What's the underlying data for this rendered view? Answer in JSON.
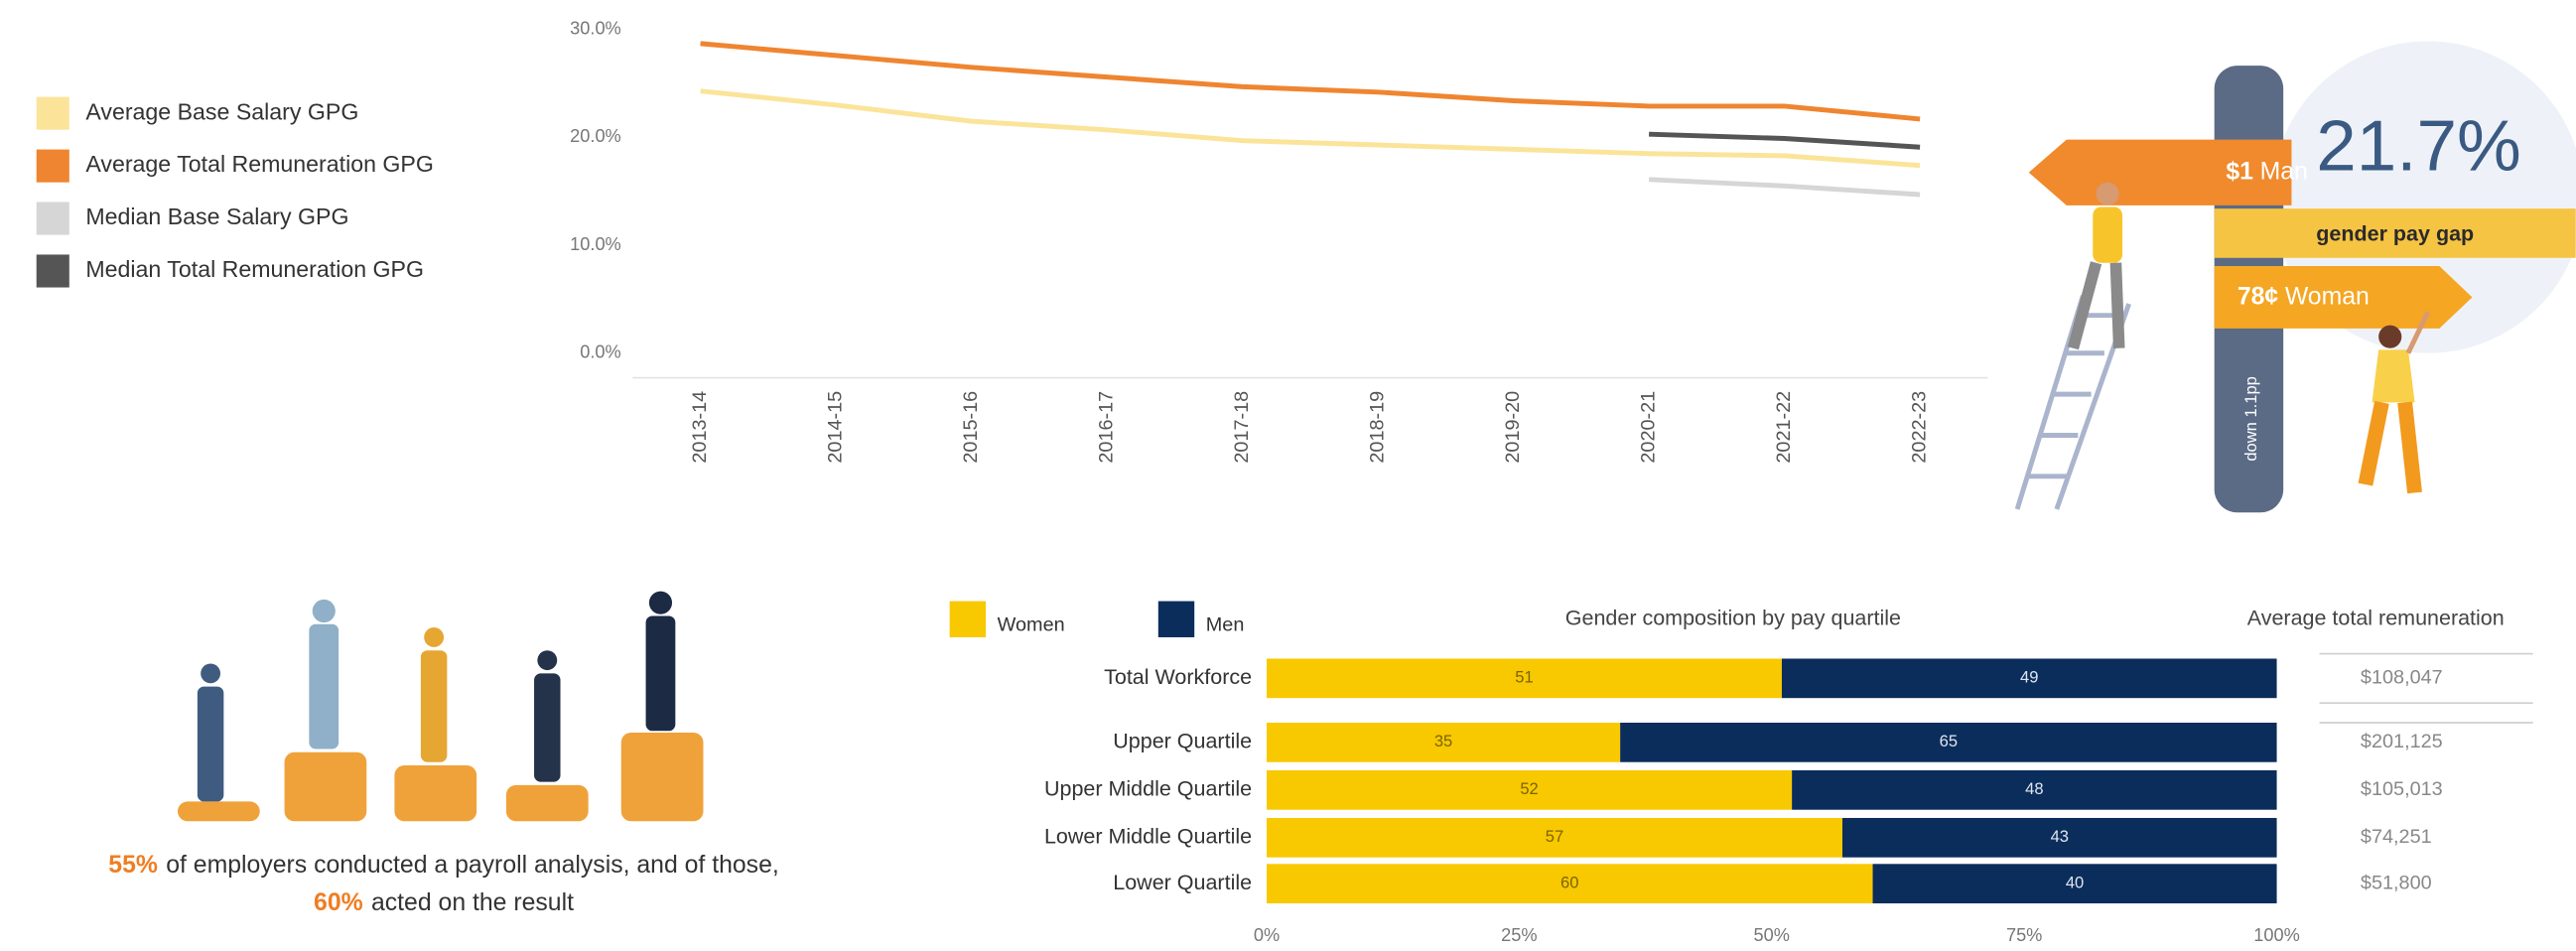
{
  "chart_data": [
    {
      "type": "line",
      "categories": [
        "2013-14",
        "2014-15",
        "2015-16",
        "2016-17",
        "2017-18",
        "2018-19",
        "2019-20",
        "2020-21",
        "2021-22",
        "2022-23"
      ],
      "series": [
        {
          "name": "Average Base Salary GPG",
          "color": "#fbe49a",
          "values": [
            24.3,
            23.0,
            21.5,
            20.7,
            19.7,
            19.3,
            18.9,
            18.5,
            18.3,
            17.4
          ]
        },
        {
          "name": "Average Total Remuneration GPG",
          "color": "#ef8530",
          "values": [
            28.7,
            27.6,
            26.5,
            25.6,
            24.7,
            24.2,
            23.4,
            22.9,
            22.9,
            21.7
          ]
        },
        {
          "name": "Median Base Salary GPG",
          "color": "#d6d6d6",
          "values": [
            null,
            null,
            null,
            null,
            null,
            null,
            null,
            16.1,
            15.5,
            14.7
          ]
        },
        {
          "name": "Median Total Remuneration GPG",
          "color": "#555555",
          "values": [
            null,
            null,
            null,
            null,
            null,
            null,
            null,
            20.3,
            19.9,
            19.1
          ]
        }
      ],
      "ylim": [
        0,
        30
      ],
      "yticks": [
        {
          "value": 0,
          "label": "0.0%"
        },
        {
          "value": 10,
          "label": "10.0%"
        },
        {
          "value": 20,
          "label": "20.0%"
        },
        {
          "value": 30,
          "label": "30.0%"
        }
      ],
      "grid": false
    },
    {
      "type": "stacked-bar",
      "title": "Gender composition by pay quartile",
      "categories": [
        "Total Workforce",
        "Upper Quartile",
        "Upper Middle Quartile",
        "Lower Middle Quartile",
        "Lower Quartile"
      ],
      "series": [
        {
          "name": "Women",
          "color": "#f8c800",
          "values": [
            51,
            35,
            52,
            57,
            60
          ]
        },
        {
          "name": "Men",
          "color": "#0b2d5b",
          "values": [
            49,
            65,
            48,
            43,
            40
          ]
        }
      ],
      "xlim": [
        0,
        100
      ],
      "xticks": [
        {
          "value": 0,
          "label": "0%"
        },
        {
          "value": 25,
          "label": "25%"
        },
        {
          "value": 50,
          "label": "50%"
        },
        {
          "value": 75,
          "label": "75%"
        },
        {
          "value": 100,
          "label": "100%"
        }
      ]
    }
  ],
  "remuneration": {
    "title": "Average total remuneration",
    "values": [
      "$108,047",
      "$201,125",
      "$105,013",
      "$74,251",
      "$51,800"
    ]
  },
  "gap_panel": {
    "man_amount": "$1",
    "man_label": "Man",
    "headline": "21.7%",
    "caption": "gender pay gap",
    "woman_amount": "78¢",
    "woman_label": "Woman",
    "change": "down 1.1pp"
  },
  "payroll": {
    "stat1": "55%",
    "text1": "of employers conducted a payroll analysis, and of those,",
    "stat2": "60%",
    "text2": "acted on the result"
  }
}
